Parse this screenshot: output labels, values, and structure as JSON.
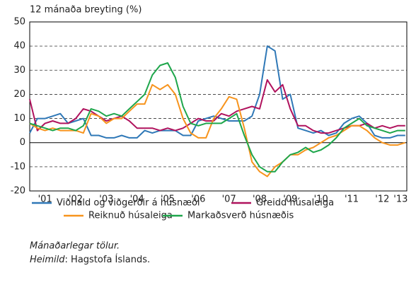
{
  "chart_data": {
    "type": "line",
    "y_label": "12 mánaða breyting (%)",
    "x": [
      2001,
      2001.25,
      2001.5,
      2001.75,
      2002,
      2002.25,
      2002.5,
      2002.75,
      2003,
      2003.25,
      2003.5,
      2003.75,
      2004,
      2004.25,
      2004.5,
      2004.75,
      2005,
      2005.25,
      2005.5,
      2005.75,
      2006,
      2006.25,
      2006.5,
      2006.75,
      2007,
      2007.25,
      2007.5,
      2007.75,
      2008,
      2008.25,
      2008.5,
      2008.75,
      2009,
      2009.25,
      2009.5,
      2009.75,
      2010,
      2010.25,
      2010.5,
      2010.75,
      2011,
      2011.25,
      2011.5,
      2011.75,
      2012,
      2012.25,
      2012.5,
      2012.75,
      2013,
      2013.25
    ],
    "series": [
      {
        "name": "Viðhald og viðgerðir á húsnæði",
        "color": "#2f78b7",
        "values": [
          4,
          10,
          10,
          11,
          12,
          8,
          9,
          10,
          3,
          3,
          2,
          2,
          3,
          2,
          2,
          5,
          4,
          5,
          5,
          5,
          3,
          3,
          9,
          10,
          11,
          10,
          9,
          9,
          9,
          11,
          20,
          40,
          38,
          18,
          20,
          6,
          5,
          4,
          5,
          3,
          4,
          8,
          10,
          11,
          8,
          3,
          2,
          2,
          3,
          3
        ]
      },
      {
        "name": "Greidd húsaleiga",
        "color": "#b0125d",
        "values": [
          18,
          5,
          8,
          9,
          8,
          8,
          10,
          14,
          13,
          11,
          9,
          10,
          11,
          9,
          6,
          6,
          6,
          5,
          6,
          5,
          6,
          8,
          10,
          9,
          9,
          12,
          11,
          13,
          14,
          15,
          14,
          26,
          21,
          24,
          14,
          7,
          7,
          5,
          4,
          4,
          5,
          6,
          7,
          7,
          8,
          6,
          7,
          6,
          7,
          7
        ]
      },
      {
        "name": "Reiknuð húsaleiga",
        "color": "#f7941d",
        "values": [
          8,
          6,
          5,
          6,
          5,
          5,
          5,
          4,
          12,
          11,
          8,
          10,
          10,
          13,
          16,
          16,
          24,
          22,
          24,
          20,
          10,
          4,
          2,
          2,
          10,
          14,
          19,
          18,
          6,
          -8,
          -12,
          -14,
          -10,
          -8,
          -5,
          -5,
          -3,
          -2,
          0,
          2,
          3,
          5,
          7,
          7,
          5,
          2,
          0,
          -1,
          -1,
          0
        ]
      },
      {
        "name": "Markaðsverð húsnæðis",
        "color": "#1ea64b",
        "values": [
          8,
          7,
          6,
          5,
          6,
          6,
          5,
          7,
          14,
          13,
          11,
          12,
          11,
          14,
          17,
          20,
          28,
          32,
          33,
          27,
          15,
          8,
          7,
          8,
          8,
          8,
          10,
          12,
          3,
          -5,
          -10,
          -12,
          -12,
          -8,
          -5,
          -4,
          -2,
          -4,
          -3,
          -1,
          2,
          6,
          8,
          10,
          7,
          6,
          5,
          4,
          5,
          5
        ]
      }
    ],
    "xlim": [
      2001,
      2013.3
    ],
    "xticks": [
      {
        "value": 2001.5,
        "label": "'01"
      },
      {
        "value": 2002.5,
        "label": "'02"
      },
      {
        "value": 2003.5,
        "label": "'03"
      },
      {
        "value": 2004.5,
        "label": "'04"
      },
      {
        "value": 2005.5,
        "label": "'05"
      },
      {
        "value": 2006.5,
        "label": "'06"
      },
      {
        "value": 2007.5,
        "label": "'07"
      },
      {
        "value": 2008.5,
        "label": "'08"
      },
      {
        "value": 2009.5,
        "label": "'09"
      },
      {
        "value": 2010.5,
        "label": "'10"
      },
      {
        "value": 2011.5,
        "label": "'11"
      },
      {
        "value": 2012.5,
        "label": "'12"
      },
      {
        "value": 2013.1,
        "label": "'13"
      }
    ],
    "ylim": [
      -20,
      50
    ],
    "yticks": [
      -20,
      -10,
      0,
      10,
      20,
      30,
      40,
      50
    ],
    "grid": true,
    "notes": [
      "Mánaðarlegar tölur."
    ],
    "source_label": "Heimild",
    "source_text": ": Hagstofa Íslands."
  }
}
